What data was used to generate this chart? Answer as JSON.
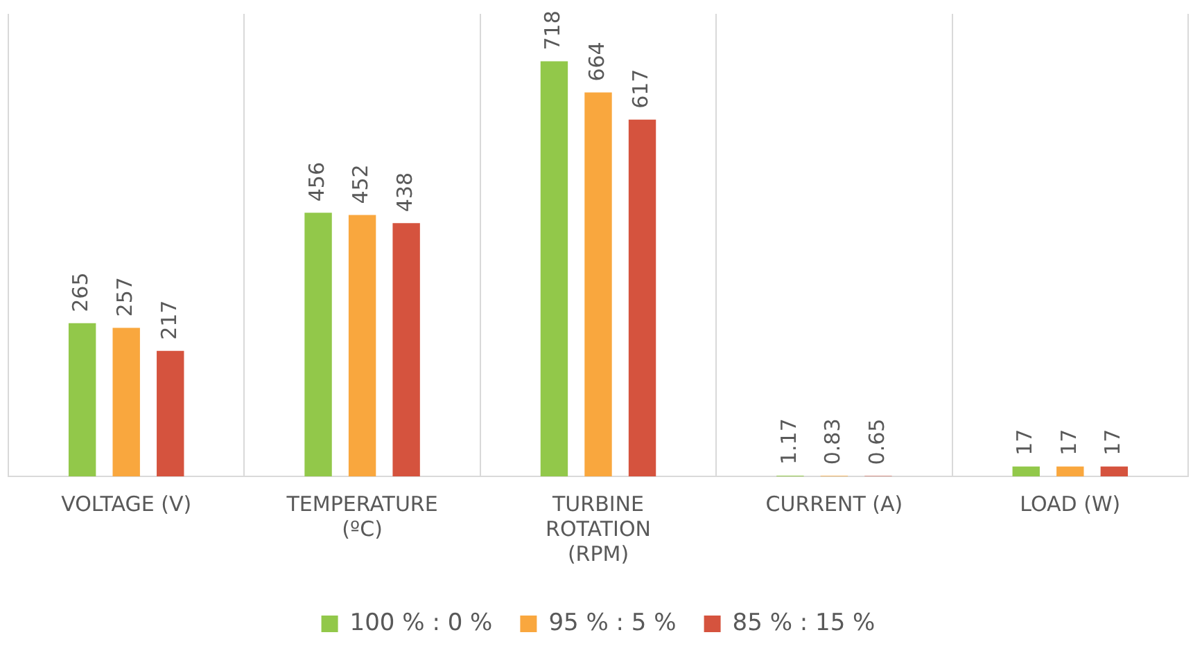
{
  "chart_data": {
    "type": "bar",
    "categories": [
      "VOLTAGE (V)",
      "TEMPERATURE (ºC)",
      "TURBINE ROTATION (RPM)",
      "CURRENT (A)",
      "LOAD (W)"
    ],
    "series": [
      {
        "name": "100 % : 0 %",
        "color": "#92c84a",
        "values": [
          265,
          456,
          718,
          1.17,
          17
        ]
      },
      {
        "name": "95 % : 5 %",
        "color": "#f9a73e",
        "values": [
          257,
          452,
          664,
          0.83,
          17
        ]
      },
      {
        "name": "85 % : 15 %",
        "color": "#d5533e",
        "values": [
          217,
          438,
          617,
          0.65,
          17
        ]
      }
    ],
    "data_labels": true,
    "grid": "x",
    "legend": "bottom"
  }
}
